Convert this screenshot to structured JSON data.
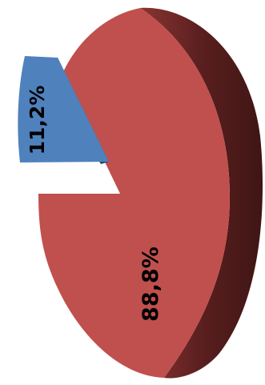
{
  "chart_data": {
    "type": "pie",
    "style": "3d-exploded",
    "orientation": "rotated-90-clockwise",
    "slices": [
      {
        "value": 88.8,
        "label": "88,8%",
        "color": "#c0504d",
        "side_color": "#5a1f1f"
      },
      {
        "value": 11.2,
        "label": "11,2%",
        "color": "#4f81bd",
        "side_color": "#2e4f7a"
      }
    ]
  }
}
